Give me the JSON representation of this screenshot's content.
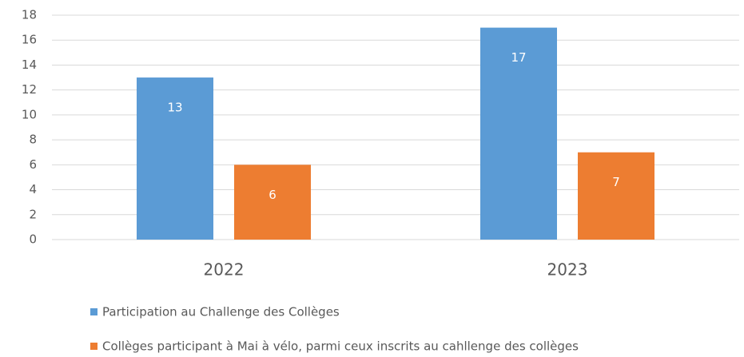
{
  "chart_data": {
    "type": "bar",
    "categories": [
      "2022",
      "2023"
    ],
    "series": [
      {
        "name": "Participation au Challenge des Collèges",
        "color": "#5b9bd5",
        "values": [
          13,
          17
        ]
      },
      {
        "name": "Collèges participant à Mai à vélo, parmi ceux inscrits au cahllenge des collèges",
        "color": "#ed7d31",
        "values": [
          6,
          7
        ]
      }
    ],
    "ylim": [
      0,
      18
    ],
    "yticks": [
      0,
      2,
      4,
      6,
      8,
      10,
      12,
      14,
      16,
      18
    ],
    "grid": true,
    "legend": "bottom"
  }
}
